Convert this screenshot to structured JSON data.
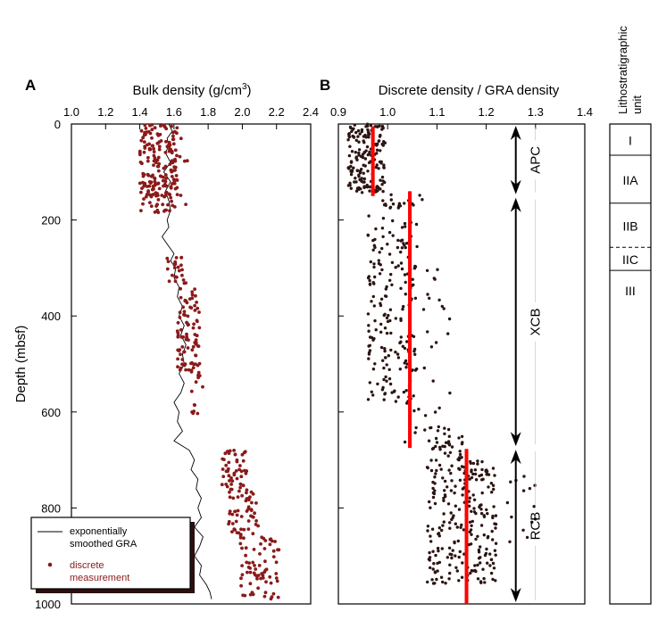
{
  "chart_data": [
    {
      "panel_label": "A",
      "type": "scatter",
      "xlabel": "Bulk density (g/cm",
      "xlabel_sup": "3",
      "xlabel_close": ")",
      "ylabel": "Depth (mbsf)",
      "xlim": [
        1.0,
        2.4
      ],
      "ylim": [
        0,
        1000
      ],
      "y_inverted": true,
      "x_ticks": [
        "1.0",
        "1.2",
        "1.4",
        "1.6",
        "1.8",
        "2.0",
        "2.2",
        "2.4"
      ],
      "y_ticks": [
        "0",
        "200",
        "400",
        "600",
        "800",
        "1000"
      ],
      "legend": {
        "placement": "bottom-left",
        "entries": [
          {
            "label_lines": [
              "exponentially",
              "smoothed  GRA"
            ],
            "color": "#000000",
            "marker": "line"
          },
          {
            "label_lines": [
              "discrete",
              "measurement"
            ],
            "color": "#8b1a1a",
            "marker": "dot"
          }
        ]
      },
      "series": [
        {
          "name": "exponentially smoothed GRA",
          "kind": "line",
          "color": "#000000",
          "points": [
            [
              1.57,
              0
            ],
            [
              1.59,
              15
            ],
            [
              1.56,
              30
            ],
            [
              1.57,
              45
            ],
            [
              1.55,
              60
            ],
            [
              1.58,
              80
            ],
            [
              1.54,
              100
            ],
            [
              1.58,
              120
            ],
            [
              1.55,
              140
            ],
            [
              1.57,
              160
            ],
            [
              1.58,
              180
            ],
            [
              1.56,
              200
            ],
            [
              1.57,
              215
            ],
            [
              1.53,
              235
            ],
            [
              1.57,
              255
            ],
            [
              1.6,
              270
            ],
            [
              1.58,
              285
            ],
            [
              1.61,
              300
            ],
            [
              1.6,
              320
            ],
            [
              1.63,
              340
            ],
            [
              1.62,
              360
            ],
            [
              1.65,
              380
            ],
            [
              1.63,
              400
            ],
            [
              1.66,
              420
            ],
            [
              1.64,
              440
            ],
            [
              1.67,
              460
            ],
            [
              1.65,
              480
            ],
            [
              1.66,
              500
            ],
            [
              1.63,
              520
            ],
            [
              1.66,
              540
            ],
            [
              1.64,
              560
            ],
            [
              1.6,
              580
            ],
            [
              1.63,
              600
            ],
            [
              1.62,
              620
            ],
            [
              1.65,
              640
            ],
            [
              1.6,
              660
            ],
            [
              1.69,
              680
            ],
            [
              1.72,
              700
            ],
            [
              1.7,
              720
            ],
            [
              1.74,
              740
            ],
            [
              1.73,
              760
            ],
            [
              1.76,
              780
            ],
            [
              1.74,
              800
            ],
            [
              1.76,
              820
            ],
            [
              1.72,
              840
            ],
            [
              1.77,
              860
            ],
            [
              1.75,
              880
            ],
            [
              1.72,
              900
            ],
            [
              1.76,
              920
            ],
            [
              1.75,
              940
            ],
            [
              1.79,
              960
            ],
            [
              1.81,
              975
            ],
            [
              1.82,
              990
            ]
          ]
        },
        {
          "name": "discrete measurement",
          "kind": "scatter",
          "color": "#8b1a1a",
          "groups": [
            {
              "d": [
                0,
                185
              ],
              "x": [
                1.4,
                1.62
              ],
              "n": 200
            },
            {
              "d": [
                20,
                180
              ],
              "x": [
                1.63,
                1.68
              ],
              "n": 6
            },
            {
              "d": [
                270,
                330
              ],
              "x": [
                1.56,
                1.66
              ],
              "n": 22
            },
            {
              "d": [
                330,
                520
              ],
              "x": [
                1.62,
                1.75
              ],
              "n": 90
            },
            {
              "d": [
                520,
                560
              ],
              "x": [
                1.7,
                1.78
              ],
              "n": 6
            },
            {
              "d": [
                575,
                605
              ],
              "x": [
                1.7,
                1.75
              ],
              "n": 6
            },
            {
              "d": [
                680,
                760
              ],
              "x": [
                1.88,
                2.03
              ],
              "n": 45
            },
            {
              "d": [
                760,
                860
              ],
              "x": [
                1.92,
                2.1
              ],
              "n": 55
            },
            {
              "d": [
                860,
                990
              ],
              "x": [
                1.98,
                2.22
              ],
              "n": 70
            }
          ]
        }
      ]
    },
    {
      "panel_label": "B",
      "type": "scatter",
      "xlabel": "Discrete density / GRA density",
      "xlim": [
        0.9,
        1.4
      ],
      "ylim": [
        0,
        1000
      ],
      "y_inverted": true,
      "x_ticks": [
        "0.9",
        "1.0",
        "1.1",
        "1.2",
        "1.3",
        "1.4"
      ],
      "series": [
        {
          "name": "ratio",
          "kind": "scatter",
          "color": "#2b1512",
          "groups": [
            {
              "d": [
                0,
                145
              ],
              "x": [
                0.92,
                0.995
              ],
              "n": 170
            },
            {
              "d": [
                145,
                175
              ],
              "x": [
                0.99,
                1.08
              ],
              "n": 20
            },
            {
              "d": [
                190,
                580
              ],
              "x": [
                0.96,
                1.06
              ],
              "n": 190
            },
            {
              "d": [
                300,
                580
              ],
              "x": [
                1.06,
                1.13
              ],
              "n": 18
            },
            {
              "d": [
                580,
                680
              ],
              "x": [
                1.03,
                1.13
              ],
              "n": 22
            },
            {
              "d": [
                650,
                700
              ],
              "x": [
                1.09,
                1.16
              ],
              "n": 25
            },
            {
              "d": [
                700,
                960
              ],
              "x": [
                1.08,
                1.22
              ],
              "n": 240
            },
            {
              "d": [
                720,
                920
              ],
              "x": [
                1.22,
                1.3
              ],
              "n": 14
            }
          ]
        },
        {
          "name": "means",
          "kind": "segments",
          "color": "#ff0000",
          "segments": [
            {
              "x": 0.97,
              "d": [
                5,
                150
              ]
            },
            {
              "x": 1.045,
              "d": [
                140,
                675
              ]
            },
            {
              "x": 1.16,
              "d": [
                677,
                1000
              ]
            }
          ]
        }
      ],
      "coring_intervals": [
        {
          "label": "APC",
          "x": 1.26,
          "d": [
            0,
            150
          ]
        },
        {
          "label": "XCB",
          "x": 1.26,
          "d": [
            150,
            675
          ]
        },
        {
          "label": "RCB",
          "x": 1.26,
          "d": [
            675,
            1000
          ]
        }
      ]
    }
  ],
  "lithology": {
    "title_lines": [
      "Lithostratigraphic",
      "unit"
    ],
    "units": [
      {
        "label": "I",
        "d": [
          0,
          65
        ]
      },
      {
        "label": "IIA",
        "d": [
          65,
          165
        ]
      },
      {
        "label": "IIB",
        "d": [
          165,
          257
        ]
      },
      {
        "label": "IIC",
        "d": [
          257,
          305
        ]
      },
      {
        "label": "III",
        "d": [
          305,
          1000
        ]
      }
    ],
    "dashed_boundaries": [
      150,
      257
    ]
  }
}
